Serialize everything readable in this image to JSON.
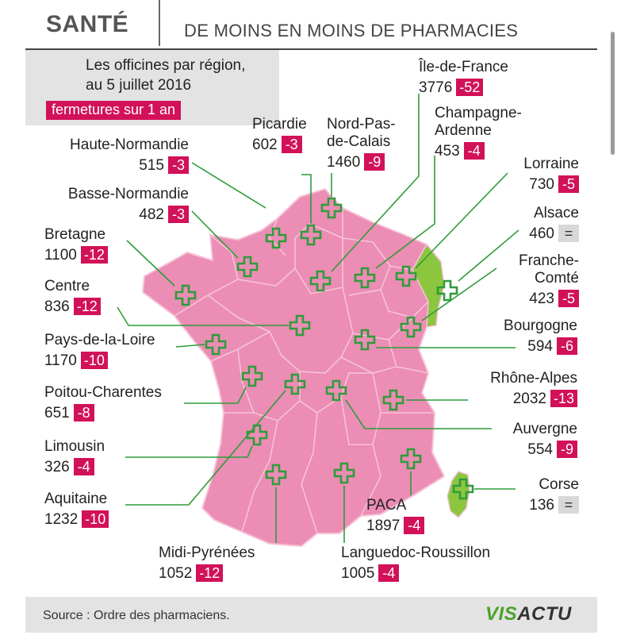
{
  "header": {
    "category": "SANTÉ",
    "headline": "DE MOINS EN MOINS DE PHARMACIES"
  },
  "legend": {
    "line1": "Les officines par région,",
    "line2": "au 5 juillet 2016",
    "closures_label": "fermetures sur 1 an"
  },
  "regions": [
    {
      "name": "Haute-Normandie",
      "count": "515",
      "change": "-3"
    },
    {
      "name": "Basse-Normandie",
      "count": "482",
      "change": "-3"
    },
    {
      "name": "Bretagne",
      "count": "1100",
      "change": "-12"
    },
    {
      "name": "Centre",
      "count": "836",
      "change": "-12"
    },
    {
      "name": "Pays-de-la-Loire",
      "count": "1170",
      "change": "-10"
    },
    {
      "name": "Poitou-Charentes",
      "count": "651",
      "change": "-8"
    },
    {
      "name": "Limousin",
      "count": "326",
      "change": "-4"
    },
    {
      "name": "Aquitaine",
      "count": "1232",
      "change": "-10"
    },
    {
      "name": "Midi-Pyrénées",
      "count": "1052",
      "change": "-12"
    },
    {
      "name": "Languedoc-Roussillon",
      "count": "1005",
      "change": "-4"
    },
    {
      "name": "PACA",
      "count": "1897",
      "change": "-4"
    },
    {
      "name": "Corse",
      "count": "136",
      "change": "="
    },
    {
      "name": "Auvergne",
      "count": "554",
      "change": "-9"
    },
    {
      "name": "Rhône-Alpes",
      "count": "2032",
      "change": "-13"
    },
    {
      "name": "Bourgogne",
      "count": "594",
      "change": "-6"
    },
    {
      "name": "Franche-Comté",
      "line1": "Franche-",
      "line2": "Comté",
      "count": "423",
      "change": "-5"
    },
    {
      "name": "Alsace",
      "count": "460",
      "change": "="
    },
    {
      "name": "Lorraine",
      "count": "730",
      "change": "-5"
    },
    {
      "name": "Champagne-Ardenne",
      "line1": "Champagne-",
      "line2": "Ardenne",
      "count": "453",
      "change": "-4"
    },
    {
      "name": "Île-de-France",
      "count": "3776",
      "change": "-52"
    },
    {
      "name": "Nord-Pas-de-Calais",
      "line1": "Nord-Pas-",
      "line2": "de-Calais",
      "count": "1460",
      "change": "-9"
    },
    {
      "name": "Picardie",
      "count": "602",
      "change": "-3"
    }
  ],
  "footer": {
    "source": "Source : Ordre des pharmaciens.",
    "logo_part1": "VIS",
    "logo_part2": "ACTU"
  },
  "colors": {
    "map_fill": "#eb8db4",
    "border": "#f6c3d8",
    "highlight": "#8cc63f",
    "cross": "#2e9c3a",
    "badge": "#d21159"
  }
}
